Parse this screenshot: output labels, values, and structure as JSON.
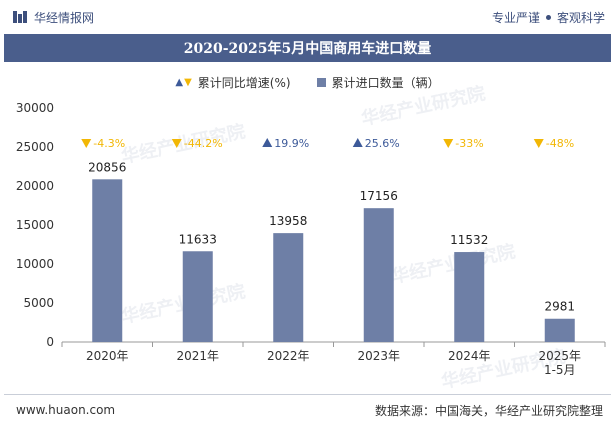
{
  "header": {
    "brand": "华经情报网",
    "tagline_left": "专业严谨",
    "tagline_right": "客观科学"
  },
  "colors": {
    "bar": "#6e7fa6",
    "title_bg": "#4a5e8c",
    "up": "#3d5a99",
    "down": "#f2b705"
  },
  "watermarks": [
    "华经产业研究院",
    "www.huaon.com"
  ],
  "chart_data": {
    "type": "bar",
    "title": "2020-2025年5月中国商用车进口数量",
    "categories": [
      "2020年",
      "2021年",
      "2022年",
      "2023年",
      "2024年",
      "2025年\n1-5月"
    ],
    "series": [
      {
        "name": "累计进口数量（辆）",
        "values": [
          20856,
          11633,
          13958,
          17156,
          11532,
          2981
        ],
        "data_labels": [
          "20856",
          "11633",
          "13958",
          "17156",
          "11532",
          "2981"
        ]
      },
      {
        "name": "累计同比增速(%)",
        "values": [
          -4.3,
          -44.2,
          19.9,
          25.6,
          -33,
          -48
        ],
        "data_labels": [
          "-4.3%",
          "-44.2%",
          "19.9%",
          "25.6%",
          "-33%",
          "-48%"
        ]
      }
    ],
    "ylim": [
      0,
      30000
    ],
    "yticks": [
      0,
      5000,
      10000,
      15000,
      20000,
      25000,
      30000
    ],
    "ytick_labels": [
      "0",
      "5000",
      "10000",
      "15000",
      "20000",
      "25000",
      "30000"
    ],
    "legend_position": "top-center",
    "grid": false
  },
  "footer": {
    "website": "www.huaon.com",
    "source": "数据来源：中国海关，华经产业研究院整理"
  }
}
